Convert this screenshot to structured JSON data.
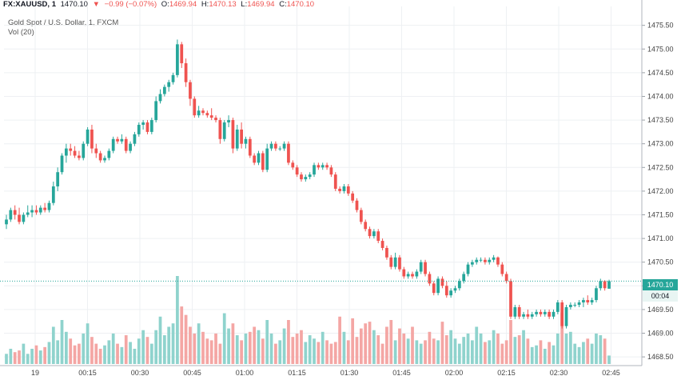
{
  "header": {
    "symbol": "FX:XAUUSD, 1",
    "last": "1470.10",
    "change": "−0.99 (−0.07%)",
    "o_label": "O:",
    "o_val": "1469.94",
    "h_label": "H:",
    "h_val": "1470.13",
    "l_label": "L:",
    "l_val": "1469.94",
    "c_label": "C:",
    "c_val": "1470.10",
    "title": "Gold Spot / U.S. Dollar, 1, FXCM",
    "vol_label": "Vol (20)"
  },
  "price_tag": {
    "value": "1470.10",
    "countdown": "00:04"
  },
  "colors": {
    "up": "#26a69a",
    "down": "#ef5350",
    "up_vol": "#8fd3cd",
    "down_vol": "#f4a6a4",
    "line": "#26a69a"
  },
  "chart_data": {
    "type": "candlestick",
    "x_tick_labels": [
      "19",
      "00:15",
      "00:30",
      "00:45",
      "01:00",
      "01:15",
      "01:30",
      "01:45",
      "02:00",
      "02:15",
      "02:30",
      "02:45"
    ],
    "y_tick_labels": [
      "1468.50",
      "1469.00",
      "1469.50",
      "1470.00",
      "1470.50",
      "1471.00",
      "1471.50",
      "1472.00",
      "1472.50",
      "1473.00",
      "1473.50",
      "1474.00",
      "1474.50",
      "1475.00",
      "1475.50"
    ],
    "ylim": [
      1468.35,
      1475.9
    ],
    "last_price": 1470.1,
    "ohlc": [
      [
        1471.3,
        1471.5,
        1471.2,
        1471.4
      ],
      [
        1471.4,
        1471.65,
        1471.35,
        1471.6
      ],
      [
        1471.6,
        1471.7,
        1471.4,
        1471.5
      ],
      [
        1471.5,
        1471.65,
        1471.3,
        1471.35
      ],
      [
        1471.35,
        1471.55,
        1471.3,
        1471.5
      ],
      [
        1471.5,
        1471.7,
        1471.45,
        1471.55
      ],
      [
        1471.55,
        1471.7,
        1471.45,
        1471.6
      ],
      [
        1471.6,
        1471.7,
        1471.5,
        1471.55
      ],
      [
        1471.55,
        1471.7,
        1471.5,
        1471.65
      ],
      [
        1471.65,
        1471.75,
        1471.55,
        1471.6
      ],
      [
        1471.6,
        1471.8,
        1471.55,
        1471.75
      ],
      [
        1471.75,
        1472.2,
        1471.7,
        1472.1
      ],
      [
        1472.1,
        1472.5,
        1472.0,
        1472.4
      ],
      [
        1472.4,
        1472.8,
        1472.35,
        1472.75
      ],
      [
        1472.75,
        1473.0,
        1472.6,
        1472.9
      ],
      [
        1472.9,
        1473.0,
        1472.75,
        1472.85
      ],
      [
        1472.85,
        1472.95,
        1472.7,
        1472.75
      ],
      [
        1472.75,
        1472.85,
        1472.65,
        1472.7
      ],
      [
        1472.7,
        1473.05,
        1472.65,
        1473.0
      ],
      [
        1473.0,
        1473.35,
        1472.95,
        1473.3
      ],
      [
        1473.3,
        1473.4,
        1472.8,
        1472.9
      ],
      [
        1472.9,
        1473.0,
        1472.7,
        1472.8
      ],
      [
        1472.8,
        1472.85,
        1472.6,
        1472.65
      ],
      [
        1472.65,
        1472.75,
        1472.6,
        1472.7
      ],
      [
        1472.7,
        1472.9,
        1472.65,
        1472.85
      ],
      [
        1472.85,
        1473.15,
        1472.8,
        1473.1
      ],
      [
        1473.1,
        1473.15,
        1473.0,
        1473.05
      ],
      [
        1473.05,
        1473.2,
        1473.0,
        1473.1
      ],
      [
        1473.1,
        1473.15,
        1472.8,
        1472.85
      ],
      [
        1472.85,
        1473.05,
        1472.8,
        1473.0
      ],
      [
        1473.0,
        1473.25,
        1472.95,
        1473.2
      ],
      [
        1473.2,
        1473.45,
        1473.15,
        1473.4
      ],
      [
        1473.4,
        1473.5,
        1473.3,
        1473.45
      ],
      [
        1473.45,
        1473.5,
        1473.2,
        1473.25
      ],
      [
        1473.25,
        1473.55,
        1473.2,
        1473.5
      ],
      [
        1473.5,
        1474.0,
        1473.45,
        1473.9
      ],
      [
        1473.9,
        1474.15,
        1473.85,
        1474.05
      ],
      [
        1474.05,
        1474.25,
        1474.0,
        1474.2
      ],
      [
        1474.2,
        1474.35,
        1474.1,
        1474.3
      ],
      [
        1474.3,
        1474.5,
        1474.25,
        1474.45
      ],
      [
        1474.45,
        1475.2,
        1474.4,
        1475.1
      ],
      [
        1475.1,
        1475.15,
        1474.6,
        1474.7
      ],
      [
        1474.7,
        1474.8,
        1474.2,
        1474.3
      ],
      [
        1474.3,
        1474.35,
        1473.8,
        1473.95
      ],
      [
        1473.95,
        1474.0,
        1473.55,
        1473.6
      ],
      [
        1473.6,
        1473.8,
        1473.55,
        1473.7
      ],
      [
        1473.7,
        1473.75,
        1473.6,
        1473.65
      ],
      [
        1473.65,
        1473.7,
        1473.55,
        1473.6
      ],
      [
        1473.6,
        1473.75,
        1473.5,
        1473.55
      ],
      [
        1473.55,
        1473.6,
        1473.45,
        1473.5
      ],
      [
        1473.5,
        1473.55,
        1473.0,
        1473.1
      ],
      [
        1473.1,
        1473.5,
        1473.05,
        1473.45
      ],
      [
        1473.45,
        1473.6,
        1473.35,
        1473.5
      ],
      [
        1473.5,
        1473.55,
        1472.8,
        1472.9
      ],
      [
        1472.9,
        1473.4,
        1472.85,
        1473.3
      ],
      [
        1473.3,
        1473.45,
        1472.9,
        1473.0
      ],
      [
        1473.0,
        1473.15,
        1472.9,
        1473.1
      ],
      [
        1473.1,
        1473.15,
        1472.7,
        1472.75
      ],
      [
        1472.75,
        1472.8,
        1472.55,
        1472.6
      ],
      [
        1472.6,
        1472.85,
        1472.55,
        1472.8
      ],
      [
        1472.8,
        1472.85,
        1472.4,
        1472.45
      ],
      [
        1472.45,
        1473.0,
        1472.4,
        1472.9
      ],
      [
        1472.9,
        1473.05,
        1472.85,
        1473.0
      ],
      [
        1473.0,
        1473.05,
        1472.85,
        1472.9
      ],
      [
        1472.9,
        1472.95,
        1472.85,
        1472.9
      ],
      [
        1472.9,
        1473.05,
        1472.85,
        1473.0
      ],
      [
        1473.0,
        1473.05,
        1472.55,
        1472.6
      ],
      [
        1472.6,
        1472.65,
        1472.45,
        1472.5
      ],
      [
        1472.5,
        1472.55,
        1472.3,
        1472.35
      ],
      [
        1472.35,
        1472.4,
        1472.2,
        1472.25
      ],
      [
        1472.25,
        1472.35,
        1472.2,
        1472.3
      ],
      [
        1472.3,
        1472.4,
        1472.25,
        1472.35
      ],
      [
        1472.35,
        1472.6,
        1472.3,
        1472.55
      ],
      [
        1472.55,
        1472.6,
        1472.45,
        1472.5
      ],
      [
        1472.5,
        1472.6,
        1472.45,
        1472.55
      ],
      [
        1472.55,
        1472.6,
        1472.45,
        1472.5
      ],
      [
        1472.5,
        1472.55,
        1472.3,
        1472.35
      ],
      [
        1472.35,
        1472.4,
        1472.0,
        1472.05
      ],
      [
        1472.05,
        1472.1,
        1471.95,
        1472.0
      ],
      [
        1472.0,
        1472.15,
        1471.95,
        1472.1
      ],
      [
        1472.1,
        1472.15,
        1471.9,
        1471.95
      ],
      [
        1471.95,
        1472.0,
        1471.75,
        1471.8
      ],
      [
        1471.8,
        1471.85,
        1471.55,
        1471.6
      ],
      [
        1471.6,
        1471.65,
        1471.3,
        1471.35
      ],
      [
        1471.35,
        1471.4,
        1471.15,
        1471.2
      ],
      [
        1471.2,
        1471.25,
        1471.0,
        1471.05
      ],
      [
        1471.05,
        1471.2,
        1471.0,
        1471.15
      ],
      [
        1471.15,
        1471.2,
        1470.9,
        1470.95
      ],
      [
        1470.95,
        1471.0,
        1470.75,
        1470.8
      ],
      [
        1470.8,
        1470.85,
        1470.55,
        1470.6
      ],
      [
        1470.6,
        1470.65,
        1470.35,
        1470.4
      ],
      [
        1470.4,
        1470.7,
        1470.35,
        1470.6
      ],
      [
        1470.6,
        1470.65,
        1470.3,
        1470.35
      ],
      [
        1470.35,
        1470.4,
        1470.15,
        1470.2
      ],
      [
        1470.2,
        1470.3,
        1470.15,
        1470.25
      ],
      [
        1470.25,
        1470.3,
        1470.15,
        1470.2
      ],
      [
        1470.2,
        1470.35,
        1470.15,
        1470.3
      ],
      [
        1470.3,
        1470.55,
        1470.25,
        1470.5
      ],
      [
        1470.5,
        1470.55,
        1470.2,
        1470.25
      ],
      [
        1470.25,
        1470.3,
        1470.0,
        1470.05
      ],
      [
        1470.05,
        1470.1,
        1469.8,
        1469.85
      ],
      [
        1469.85,
        1470.2,
        1469.8,
        1470.15
      ],
      [
        1470.15,
        1470.2,
        1469.95,
        1470.0
      ],
      [
        1470.0,
        1470.1,
        1469.75,
        1469.8
      ],
      [
        1469.8,
        1469.95,
        1469.75,
        1469.9
      ],
      [
        1469.9,
        1470.0,
        1469.85,
        1469.95
      ],
      [
        1469.95,
        1470.15,
        1469.9,
        1470.1
      ],
      [
        1470.1,
        1470.3,
        1470.05,
        1470.25
      ],
      [
        1470.25,
        1470.5,
        1470.2,
        1470.45
      ],
      [
        1470.45,
        1470.55,
        1470.4,
        1470.5
      ],
      [
        1470.5,
        1470.6,
        1470.45,
        1470.55
      ],
      [
        1470.55,
        1470.6,
        1470.5,
        1470.55
      ],
      [
        1470.55,
        1470.6,
        1470.45,
        1470.5
      ],
      [
        1470.5,
        1470.6,
        1470.45,
        1470.55
      ],
      [
        1470.55,
        1470.65,
        1470.5,
        1470.6
      ],
      [
        1470.6,
        1470.62,
        1470.4,
        1470.45
      ],
      [
        1470.45,
        1470.5,
        1470.2,
        1470.25
      ],
      [
        1470.25,
        1470.3,
        1470.05,
        1470.1
      ],
      [
        1470.1,
        1470.15,
        1469.3,
        1469.35
      ],
      [
        1469.35,
        1469.6,
        1469.3,
        1469.55
      ],
      [
        1469.55,
        1469.6,
        1469.3,
        1469.35
      ],
      [
        1469.35,
        1469.45,
        1469.3,
        1469.4
      ],
      [
        1469.4,
        1469.5,
        1469.3,
        1469.35
      ],
      [
        1469.35,
        1469.45,
        1469.3,
        1469.4
      ],
      [
        1469.4,
        1469.5,
        1469.35,
        1469.45
      ],
      [
        1469.45,
        1469.5,
        1469.35,
        1469.4
      ],
      [
        1469.4,
        1469.5,
        1469.35,
        1469.45
      ],
      [
        1469.45,
        1469.5,
        1469.3,
        1469.35
      ],
      [
        1469.35,
        1469.5,
        1469.3,
        1469.45
      ],
      [
        1469.45,
        1469.7,
        1469.4,
        1469.65
      ],
      [
        1469.65,
        1469.7,
        1469.1,
        1469.15
      ],
      [
        1469.15,
        1469.6,
        1469.1,
        1469.55
      ],
      [
        1469.55,
        1469.65,
        1469.5,
        1469.6
      ],
      [
        1469.6,
        1469.65,
        1469.55,
        1469.6
      ],
      [
        1469.6,
        1469.7,
        1469.55,
        1469.65
      ],
      [
        1469.65,
        1469.75,
        1469.55,
        1469.7
      ],
      [
        1469.7,
        1469.8,
        1469.6,
        1469.65
      ],
      [
        1469.65,
        1469.75,
        1469.6,
        1469.7
      ],
      [
        1469.7,
        1470.0,
        1469.65,
        1469.95
      ],
      [
        1469.95,
        1470.15,
        1469.9,
        1470.1
      ],
      [
        1470.1,
        1470.12,
        1469.9,
        1469.95
      ],
      [
        1469.94,
        1470.13,
        1469.94,
        1470.1
      ]
    ],
    "volume": [
      6,
      9,
      7,
      8,
      12,
      6,
      9,
      11,
      8,
      10,
      13,
      22,
      14,
      26,
      19,
      15,
      11,
      12,
      18,
      24,
      16,
      12,
      9,
      11,
      14,
      18,
      12,
      10,
      17,
      13,
      9,
      15,
      20,
      16,
      12,
      20,
      28,
      17,
      22,
      24,
      52,
      34,
      29,
      22,
      18,
      24,
      19,
      15,
      14,
      18,
      12,
      30,
      21,
      24,
      17,
      14,
      18,
      19,
      22,
      20,
      15,
      26,
      18,
      12,
      14,
      21,
      26,
      16,
      18,
      20,
      13,
      17,
      15,
      13,
      19,
      14,
      12,
      13,
      28,
      19,
      14,
      27,
      16,
      21,
      24,
      25,
      20,
      17,
      12,
      22,
      26,
      14,
      21,
      18,
      15,
      22,
      14,
      12,
      14,
      19,
      15,
      14,
      25,
      17,
      20,
      15,
      12,
      16,
      18,
      14,
      22,
      18,
      13,
      14,
      20,
      18,
      12,
      14,
      26,
      16,
      17,
      20,
      15,
      10,
      11,
      14,
      9,
      13,
      11,
      18,
      30,
      18,
      19,
      12,
      10,
      13,
      15,
      12,
      18,
      17,
      15,
      5
    ]
  }
}
